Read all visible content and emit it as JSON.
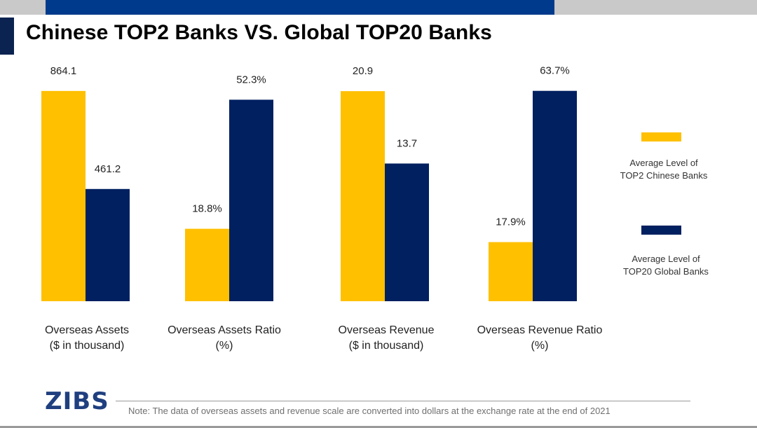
{
  "header": {
    "title": "Chinese TOP2 Banks VS. Global TOP20 Banks"
  },
  "colors": {
    "chinese": "#FFC000",
    "global": "#002060",
    "accent_bar": "#003A8C"
  },
  "chart_data": {
    "type": "bar",
    "title": "Chinese TOP2 Banks VS. Global TOP20 Banks",
    "categories": [
      [
        "Overseas Assets",
        "($ in thousand)"
      ],
      [
        "Overseas Assets Ratio",
        "(%)"
      ],
      [
        "Overseas Revenue",
        "($ in thousand)"
      ],
      [
        "Overseas Revenue Ratio",
        "(%)"
      ]
    ],
    "series": [
      {
        "name": [
          "Average Level of",
          "TOP2 Chinese Banks"
        ],
        "values": [
          864.1,
          18.8,
          20.9,
          17.9
        ],
        "labels": [
          "864.1",
          "18.8%",
          "20.9",
          "17.9%"
        ]
      },
      {
        "name": [
          "Average Level of",
          "TOP20 Global Banks"
        ],
        "values": [
          461.2,
          52.3,
          13.7,
          63.7
        ],
        "labels": [
          "461.2",
          "52.3%",
          "13.7",
          "63.7%"
        ]
      }
    ],
    "ylim": [
      0,
      950
    ],
    "panel_ylims": [
      [
        0,
        950
      ],
      [
        0,
        60
      ],
      [
        0,
        23
      ],
      [
        0,
        70
      ]
    ],
    "grid": false,
    "legend": "right",
    "xlabel": "",
    "ylabel": ""
  },
  "footer": {
    "logo": "ZIBS",
    "note": "Note: The data of overseas assets and revenue scale are converted into dollars at the exchange rate at the end of 2021"
  }
}
